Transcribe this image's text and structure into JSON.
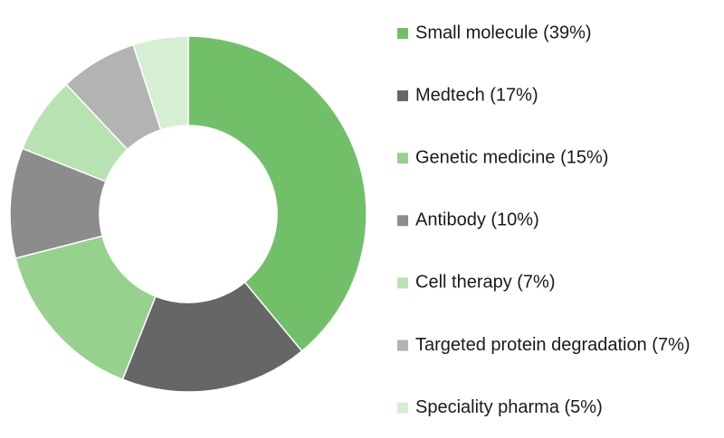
{
  "chart_data": {
    "type": "donut",
    "categories": [
      "Small molecule (39%)",
      "Medtech (17%)",
      "Genetic medicine (15%)",
      "Antibody (10%)",
      "Cell therapy (7%)",
      "Targeted protein degradation (7%)",
      "Speciality pharma (5%)"
    ],
    "values": [
      39,
      17,
      15,
      10,
      7,
      7,
      5
    ],
    "colors": [
      "#72bf6a",
      "#666666",
      "#96d18e",
      "#8c8c8c",
      "#b9e2b2",
      "#b3b3b3",
      "#d6eed2"
    ],
    "legend": "right"
  }
}
